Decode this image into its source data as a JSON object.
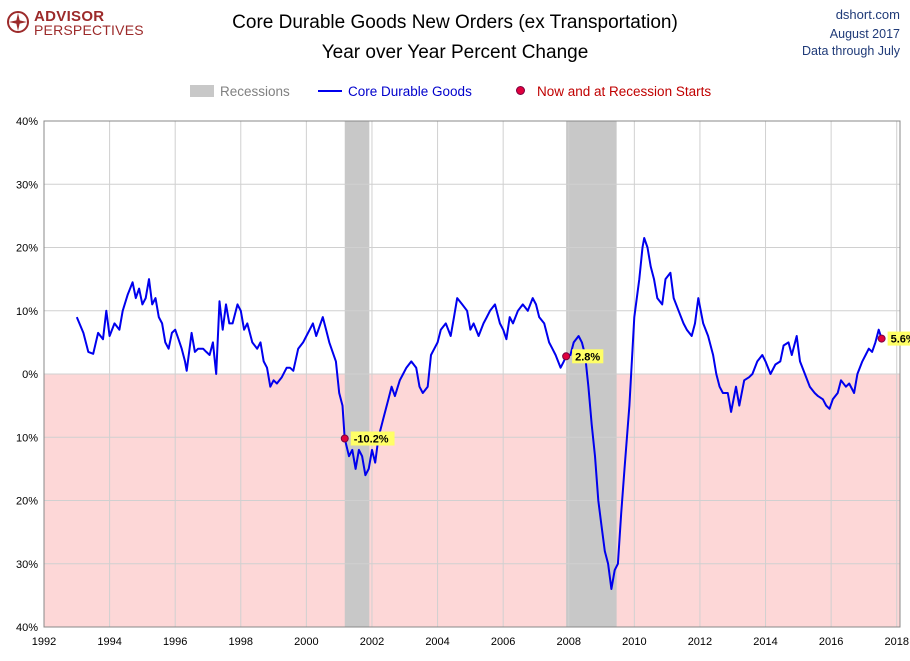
{
  "logo": {
    "line1": "ADVISOR",
    "line2": "PERSPECTIVES"
  },
  "title": {
    "line1": "Core Durable Goods New Orders (ex Transportation)",
    "line2": "Year over Year Percent Change"
  },
  "source": {
    "site": "dshort.com",
    "date": "August 2017",
    "note": "Data through July"
  },
  "legend": {
    "recessions": "Recessions",
    "series": "Core Durable Goods",
    "markers": "Now and at Recession Starts"
  },
  "colors": {
    "line": "#0000ee",
    "recession": "#c8c8c8",
    "negative_zone": "#fdd7d7",
    "marker": "#e0003c",
    "label_bg": "#ffff66",
    "legend_red": "#c00000"
  },
  "chart_data": {
    "type": "line",
    "title": "Core Durable Goods New Orders (ex Transportation)",
    "subtitle": "Year over Year Percent Change",
    "xlim": [
      1992,
      2018.1
    ],
    "ylim": [
      -40,
      40
    ],
    "x_ticks": [
      "1992",
      "1994",
      "1996",
      "1998",
      "2000",
      "2002",
      "2004",
      "2006",
      "2008",
      "2010",
      "2012",
      "2014",
      "2016",
      "2018"
    ],
    "y_ticks": [
      "40%",
      "30%",
      "20%",
      "10%",
      "0%",
      "10%",
      "20%",
      "30%",
      "40%"
    ],
    "grid": true,
    "recessions": [
      [
        2001.17,
        2001.92
      ],
      [
        2007.92,
        2009.46
      ]
    ],
    "markers": [
      {
        "x": 2001.17,
        "y": -10.2,
        "label": "-10.2%"
      },
      {
        "x": 2007.92,
        "y": 2.8,
        "label": "2.8%"
      },
      {
        "x": 2017.54,
        "y": 5.6,
        "label": "5.6%"
      }
    ],
    "series": [
      {
        "name": "Core Durable Goods",
        "points": [
          [
            1993.0,
            9
          ],
          [
            1993.2,
            6.5
          ],
          [
            1993.35,
            3.5
          ],
          [
            1993.5,
            3.2
          ],
          [
            1993.65,
            6.5
          ],
          [
            1993.8,
            5.5
          ],
          [
            1993.9,
            10
          ],
          [
            1994.0,
            6
          ],
          [
            1994.15,
            8
          ],
          [
            1994.3,
            7
          ],
          [
            1994.4,
            10
          ],
          [
            1994.55,
            12.5
          ],
          [
            1994.7,
            14.5
          ],
          [
            1994.8,
            12
          ],
          [
            1994.9,
            13.5
          ],
          [
            1995.0,
            11
          ],
          [
            1995.1,
            12
          ],
          [
            1995.2,
            15
          ],
          [
            1995.3,
            11
          ],
          [
            1995.4,
            12
          ],
          [
            1995.5,
            9
          ],
          [
            1995.6,
            8
          ],
          [
            1995.7,
            5
          ],
          [
            1995.8,
            4
          ],
          [
            1995.9,
            6.5
          ],
          [
            1996.0,
            7
          ],
          [
            1996.1,
            5.5
          ],
          [
            1996.2,
            4
          ],
          [
            1996.3,
            2
          ],
          [
            1996.35,
            0.5
          ],
          [
            1996.5,
            6.5
          ],
          [
            1996.6,
            3.5
          ],
          [
            1996.7,
            4
          ],
          [
            1996.85,
            4
          ],
          [
            1996.95,
            3.5
          ],
          [
            1997.05,
            3
          ],
          [
            1997.15,
            5
          ],
          [
            1997.25,
            0
          ],
          [
            1997.35,
            11.5
          ],
          [
            1997.45,
            7
          ],
          [
            1997.55,
            11
          ],
          [
            1997.65,
            8
          ],
          [
            1997.75,
            8
          ],
          [
            1997.9,
            11
          ],
          [
            1998.0,
            10
          ],
          [
            1998.1,
            7
          ],
          [
            1998.2,
            8
          ],
          [
            1998.35,
            5
          ],
          [
            1998.5,
            4
          ],
          [
            1998.6,
            5
          ],
          [
            1998.7,
            2
          ],
          [
            1998.8,
            1
          ],
          [
            1998.9,
            -2
          ],
          [
            1999.0,
            -1
          ],
          [
            1999.1,
            -1.5
          ],
          [
            1999.25,
            -0.5
          ],
          [
            1999.4,
            1
          ],
          [
            1999.5,
            1
          ],
          [
            1999.6,
            0.5
          ],
          [
            1999.75,
            4
          ],
          [
            1999.9,
            5
          ],
          [
            2000.0,
            6
          ],
          [
            2000.1,
            7
          ],
          [
            2000.2,
            8
          ],
          [
            2000.3,
            6
          ],
          [
            2000.4,
            7.5
          ],
          [
            2000.5,
            9
          ],
          [
            2000.6,
            7
          ],
          [
            2000.7,
            5
          ],
          [
            2000.8,
            3.5
          ],
          [
            2000.9,
            2
          ],
          [
            2001.0,
            -3
          ],
          [
            2001.1,
            -5
          ],
          [
            2001.17,
            -10.2
          ],
          [
            2001.3,
            -13
          ],
          [
            2001.4,
            -12
          ],
          [
            2001.5,
            -15
          ],
          [
            2001.6,
            -12
          ],
          [
            2001.7,
            -13
          ],
          [
            2001.8,
            -16
          ],
          [
            2001.9,
            -15
          ],
          [
            2002.0,
            -12
          ],
          [
            2002.1,
            -14
          ],
          [
            2002.2,
            -10
          ],
          [
            2002.35,
            -7
          ],
          [
            2002.5,
            -4
          ],
          [
            2002.6,
            -2
          ],
          [
            2002.7,
            -3.5
          ],
          [
            2002.85,
            -1
          ],
          [
            2002.95,
            0
          ],
          [
            2003.05,
            1
          ],
          [
            2003.2,
            2
          ],
          [
            2003.35,
            1
          ],
          [
            2003.45,
            -2
          ],
          [
            2003.55,
            -3
          ],
          [
            2003.7,
            -2
          ],
          [
            2003.8,
            3
          ],
          [
            2003.9,
            4
          ],
          [
            2004.0,
            5
          ],
          [
            2004.1,
            7
          ],
          [
            2004.25,
            8
          ],
          [
            2004.4,
            6
          ],
          [
            2004.5,
            9
          ],
          [
            2004.6,
            12
          ],
          [
            2004.75,
            11
          ],
          [
            2004.9,
            10
          ],
          [
            2005.0,
            7
          ],
          [
            2005.1,
            8
          ],
          [
            2005.25,
            6
          ],
          [
            2005.4,
            8
          ],
          [
            2005.5,
            9
          ],
          [
            2005.6,
            10
          ],
          [
            2005.75,
            11
          ],
          [
            2005.9,
            8
          ],
          [
            2006.0,
            7
          ],
          [
            2006.1,
            5.5
          ],
          [
            2006.2,
            9
          ],
          [
            2006.3,
            8
          ],
          [
            2006.45,
            10
          ],
          [
            2006.6,
            11
          ],
          [
            2006.75,
            10
          ],
          [
            2006.9,
            12
          ],
          [
            2007.0,
            11
          ],
          [
            2007.1,
            9
          ],
          [
            2007.25,
            8
          ],
          [
            2007.4,
            5
          ],
          [
            2007.5,
            4
          ],
          [
            2007.6,
            3
          ],
          [
            2007.75,
            1
          ],
          [
            2007.85,
            2
          ],
          [
            2007.92,
            2.8
          ],
          [
            2008.05,
            3
          ],
          [
            2008.15,
            5
          ],
          [
            2008.3,
            6
          ],
          [
            2008.4,
            5
          ],
          [
            2008.5,
            3
          ],
          [
            2008.6,
            -2
          ],
          [
            2008.7,
            -8
          ],
          [
            2008.8,
            -13
          ],
          [
            2008.9,
            -20
          ],
          [
            2009.0,
            -24
          ],
          [
            2009.1,
            -28
          ],
          [
            2009.2,
            -30
          ],
          [
            2009.3,
            -34
          ],
          [
            2009.4,
            -31
          ],
          [
            2009.5,
            -30
          ],
          [
            2009.6,
            -22
          ],
          [
            2009.7,
            -15
          ],
          [
            2009.85,
            -5
          ],
          [
            2010.0,
            9
          ],
          [
            2010.15,
            15
          ],
          [
            2010.25,
            20
          ],
          [
            2010.3,
            21.5
          ],
          [
            2010.4,
            20
          ],
          [
            2010.5,
            17
          ],
          [
            2010.6,
            15
          ],
          [
            2010.7,
            12
          ],
          [
            2010.85,
            11
          ],
          [
            2010.95,
            15
          ],
          [
            2011.1,
            16
          ],
          [
            2011.2,
            12
          ],
          [
            2011.35,
            10
          ],
          [
            2011.5,
            8
          ],
          [
            2011.6,
            7
          ],
          [
            2011.75,
            6
          ],
          [
            2011.85,
            8
          ],
          [
            2011.95,
            12
          ],
          [
            2012.1,
            8
          ],
          [
            2012.25,
            6
          ],
          [
            2012.4,
            3
          ],
          [
            2012.5,
            0
          ],
          [
            2012.6,
            -2
          ],
          [
            2012.7,
            -3
          ],
          [
            2012.85,
            -3
          ],
          [
            2012.95,
            -6
          ],
          [
            2013.1,
            -2
          ],
          [
            2013.2,
            -5
          ],
          [
            2013.35,
            -1
          ],
          [
            2013.5,
            -0.5
          ],
          [
            2013.6,
            0
          ],
          [
            2013.75,
            2
          ],
          [
            2013.9,
            3
          ],
          [
            2014.0,
            2
          ],
          [
            2014.15,
            0
          ],
          [
            2014.3,
            1.5
          ],
          [
            2014.45,
            2
          ],
          [
            2014.55,
            4.5
          ],
          [
            2014.7,
            5
          ],
          [
            2014.8,
            3
          ],
          [
            2014.95,
            6
          ],
          [
            2015.05,
            2
          ],
          [
            2015.2,
            0
          ],
          [
            2015.35,
            -2
          ],
          [
            2015.5,
            -3
          ],
          [
            2015.6,
            -3.5
          ],
          [
            2015.75,
            -4
          ],
          [
            2015.85,
            -5
          ],
          [
            2015.95,
            -5.5
          ],
          [
            2016.05,
            -4
          ],
          [
            2016.2,
            -3
          ],
          [
            2016.3,
            -1
          ],
          [
            2016.45,
            -2
          ],
          [
            2016.55,
            -1.5
          ],
          [
            2016.7,
            -3
          ],
          [
            2016.8,
            0
          ],
          [
            2016.95,
            2
          ],
          [
            2017.05,
            3
          ],
          [
            2017.15,
            4
          ],
          [
            2017.25,
            3.5
          ],
          [
            2017.35,
            5
          ],
          [
            2017.45,
            7
          ],
          [
            2017.54,
            5.6
          ]
        ]
      }
    ]
  }
}
